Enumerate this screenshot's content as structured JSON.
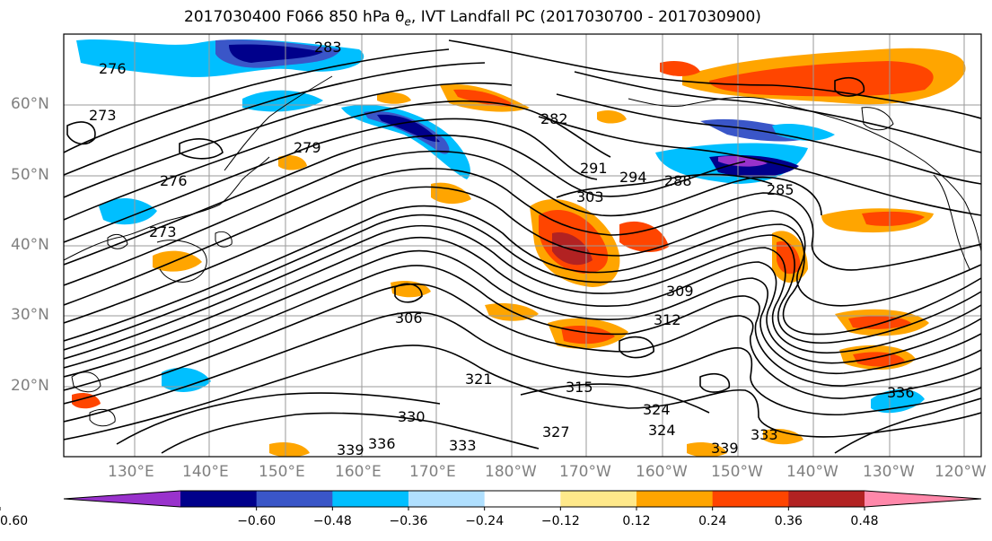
{
  "figure": {
    "title": "2017030400 F066 850 hPa θ",
    "title_sub": "e",
    "title_tail": ", IVT Landfall PC (2017030700 - 2017030900)"
  },
  "map": {
    "lat_labels": [
      "60°N",
      "50°N",
      "40°N",
      "30°N",
      "20°N"
    ],
    "lon_labels": [
      "130°E",
      "140°E",
      "150°E",
      "160°E",
      "170°E",
      "180°W",
      "170°W",
      "160°W",
      "150°W",
      "140°W",
      "130°W",
      "120°W"
    ],
    "contour_labels": [
      "283",
      "276",
      "273",
      "279",
      "276",
      "273",
      "282",
      "291",
      "294",
      "288",
      "285",
      "303",
      "309",
      "312",
      "306",
      "321",
      "315",
      "324",
      "330",
      "336",
      "333",
      "339",
      "327",
      "324",
      "333",
      "339",
      "336"
    ]
  },
  "colorbar": {
    "tick_labels": [
      "−0.60",
      "−0.48",
      "−0.36",
      "−0.24",
      "−0.12",
      "0.12",
      "0.24",
      "0.36",
      "0.48",
      "0.60"
    ],
    "colors": [
      "#9932cc",
      "#00008b",
      "#3a56c8",
      "#00bfff",
      "#b0e0ff",
      "#ffffff",
      "#ffe98a",
      "#ffa500",
      "#ff4500",
      "#b22222",
      "#ff88aa"
    ]
  },
  "colors": {
    "contour": "#000000",
    "grid": "#9a9a9a",
    "axis_label": "#808080"
  }
}
